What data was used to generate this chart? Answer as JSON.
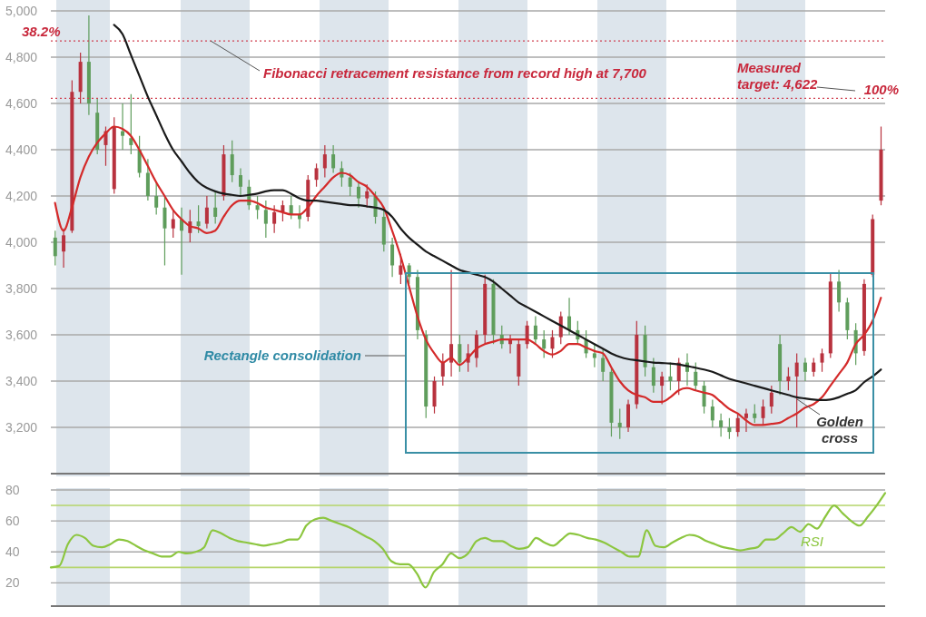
{
  "chart_data": [
    {
      "type": "candlestick",
      "categories": [
        null,
        null,
        null,
        null,
        null,
        null,
        null,
        null,
        null,
        null,
        null,
        null,
        null,
        null,
        null,
        null,
        null,
        null,
        null,
        null,
        null,
        null,
        null,
        null,
        null,
        null,
        null,
        null,
        null,
        null,
        null,
        null,
        null,
        null,
        null,
        null,
        null,
        null,
        null,
        null,
        null,
        null,
        null,
        null,
        null,
        null,
        null,
        null,
        null,
        null,
        null,
        null,
        null,
        null,
        null,
        null,
        null,
        null,
        null,
        null,
        null,
        null,
        null,
        null,
        null,
        null,
        null,
        null,
        null,
        null,
        null,
        null,
        null,
        null,
        null,
        null,
        null,
        null,
        null,
        null,
        null,
        null,
        null,
        null,
        null,
        null,
        null,
        null,
        null,
        null,
        null,
        null,
        null,
        null,
        null,
        null,
        null,
        null,
        null
      ],
      "ohlc": [
        [
          4020,
          4050,
          3900,
          3940
        ],
        [
          3960,
          4060,
          3890,
          4030
        ],
        [
          4050,
          4700,
          4040,
          4650
        ],
        [
          4650,
          4820,
          4600,
          4780
        ],
        [
          4780,
          4980,
          4550,
          4600
        ],
        [
          4560,
          4620,
          4380,
          4400
        ],
        [
          4420,
          4500,
          4330,
          4480
        ],
        [
          4230,
          4540,
          4210,
          4500
        ],
        [
          4480,
          4600,
          4400,
          4460
        ],
        [
          4450,
          4640,
          4380,
          4420
        ],
        [
          4400,
          4460,
          4280,
          4300
        ],
        [
          4300,
          4360,
          4180,
          4200
        ],
        [
          4200,
          4260,
          4120,
          4150
        ],
        [
          4150,
          4200,
          3900,
          4060
        ],
        [
          4060,
          4140,
          4020,
          4100
        ],
        [
          4100,
          4150,
          3860,
          4050
        ],
        [
          4040,
          4140,
          4000,
          4090
        ],
        [
          4090,
          4160,
          4040,
          4070
        ],
        [
          4080,
          4200,
          4060,
          4150
        ],
        [
          4150,
          4220,
          4080,
          4110
        ],
        [
          4200,
          4420,
          4180,
          4380
        ],
        [
          4380,
          4440,
          4260,
          4290
        ],
        [
          4290,
          4320,
          4200,
          4240
        ],
        [
          4240,
          4270,
          4140,
          4160
        ],
        [
          4160,
          4200,
          4100,
          4140
        ],
        [
          4140,
          4180,
          4020,
          4080
        ],
        [
          4080,
          4160,
          4040,
          4130
        ],
        [
          4130,
          4180,
          4090,
          4160
        ],
        [
          4160,
          4200,
          4100,
          4120
        ],
        [
          4120,
          4160,
          4060,
          4100
        ],
        [
          4110,
          4290,
          4090,
          4270
        ],
        [
          4270,
          4340,
          4240,
          4320
        ],
        [
          4320,
          4420,
          4280,
          4380
        ],
        [
          4380,
          4420,
          4300,
          4320
        ],
        [
          4320,
          4350,
          4240,
          4280
        ],
        [
          4280,
          4300,
          4200,
          4240
        ],
        [
          4240,
          4260,
          4150,
          4190
        ],
        [
          4190,
          4250,
          4150,
          4220
        ],
        [
          4200,
          4220,
          4080,
          4110
        ],
        [
          4110,
          4140,
          3960,
          3990
        ],
        [
          3990,
          4020,
          3850,
          3900
        ],
        [
          3860,
          3950,
          3820,
          3900
        ],
        [
          3900,
          3910,
          3820,
          3850
        ],
        [
          3850,
          3880,
          3580,
          3620
        ],
        [
          3600,
          3620,
          3240,
          3290
        ],
        [
          3290,
          3420,
          3260,
          3400
        ],
        [
          3420,
          3520,
          3380,
          3480
        ],
        [
          3480,
          3880,
          3420,
          3560
        ],
        [
          3560,
          3600,
          3440,
          3480
        ],
        [
          3480,
          3560,
          3440,
          3520
        ],
        [
          3500,
          3620,
          3460,
          3600
        ],
        [
          3600,
          3860,
          3560,
          3820
        ],
        [
          3820,
          3840,
          3560,
          3600
        ],
        [
          3600,
          3640,
          3540,
          3560
        ],
        [
          3560,
          3600,
          3520,
          3580
        ],
        [
          3420,
          3580,
          3380,
          3560
        ],
        [
          3560,
          3660,
          3540,
          3640
        ],
        [
          3640,
          3680,
          3560,
          3580
        ],
        [
          3580,
          3620,
          3500,
          3540
        ],
        [
          3540,
          3620,
          3500,
          3590
        ],
        [
          3590,
          3700,
          3560,
          3680
        ],
        [
          3680,
          3760,
          3600,
          3620
        ],
        [
          3620,
          3660,
          3560,
          3580
        ],
        [
          3580,
          3620,
          3500,
          3520
        ],
        [
          3520,
          3560,
          3460,
          3500
        ],
        [
          3500,
          3540,
          3400,
          3440
        ],
        [
          3440,
          3460,
          3160,
          3220
        ],
        [
          3220,
          3280,
          3150,
          3200
        ],
        [
          3200,
          3320,
          3180,
          3300
        ],
        [
          3300,
          3660,
          3280,
          3600
        ],
        [
          3600,
          3640,
          3420,
          3460
        ],
        [
          3460,
          3500,
          3350,
          3380
        ],
        [
          3380,
          3440,
          3300,
          3420
        ],
        [
          3420,
          3480,
          3360,
          3400
        ],
        [
          3400,
          3500,
          3340,
          3480
        ],
        [
          3480,
          3520,
          3380,
          3440
        ],
        [
          3440,
          3480,
          3360,
          3380
        ],
        [
          3380,
          3400,
          3260,
          3290
        ],
        [
          3290,
          3320,
          3200,
          3230
        ],
        [
          3230,
          3260,
          3160,
          3200
        ],
        [
          3200,
          3240,
          3150,
          3180
        ],
        [
          3180,
          3260,
          3160,
          3240
        ],
        [
          3240,
          3280,
          3180,
          3260
        ],
        [
          3260,
          3300,
          3220,
          3240
        ],
        [
          3240,
          3320,
          3210,
          3290
        ],
        [
          3290,
          3380,
          3260,
          3350
        ],
        [
          3560,
          3600,
          3340,
          3400
        ],
        [
          3400,
          3460,
          3360,
          3420
        ],
        [
          3420,
          3520,
          3200,
          3480
        ],
        [
          3480,
          3500,
          3400,
          3440
        ],
        [
          3440,
          3500,
          3420,
          3480
        ],
        [
          3480,
          3540,
          3440,
          3520
        ],
        [
          3520,
          3870,
          3500,
          3830
        ],
        [
          3830,
          3880,
          3700,
          3740
        ],
        [
          3740,
          3760,
          3580,
          3620
        ],
        [
          3620,
          3650,
          3470,
          3520
        ],
        [
          3530,
          3840,
          3510,
          3820
        ],
        [
          3860,
          4120,
          3850,
          4100
        ],
        [
          4180,
          4500,
          4160,
          4400
        ]
      ],
      "colors": [
        "#5f9d5c",
        "#b8323e",
        "#b8323e",
        "#b8323e",
        "#5f9d5c",
        "#5f9d5c",
        "#b8323e",
        "#b8323e",
        "#5f9d5c",
        "#5f9d5c",
        "#5f9d5c",
        "#5f9d5c",
        "#5f9d5c",
        "#5f9d5c",
        "#b8323e",
        "#5f9d5c",
        "#b8323e",
        "#5f9d5c",
        "#b8323e",
        "#5f9d5c",
        "#b8323e",
        "#5f9d5c",
        "#5f9d5c",
        "#5f9d5c",
        "#5f9d5c",
        "#5f9d5c",
        "#b8323e",
        "#b8323e",
        "#5f9d5c",
        "#5f9d5c",
        "#b8323e",
        "#b8323e",
        "#b8323e",
        "#5f9d5c",
        "#5f9d5c",
        "#5f9d5c",
        "#5f9d5c",
        "#b8323e",
        "#5f9d5c",
        "#5f9d5c",
        "#5f9d5c",
        "#b8323e",
        "#5f9d5c",
        "#5f9d5c",
        "#5f9d5c",
        "#b8323e",
        "#b8323e",
        "#b8323e",
        "#5f9d5c",
        "#b8323e",
        "#b8323e",
        "#b8323e",
        "#5f9d5c",
        "#5f9d5c",
        "#b8323e",
        "#b8323e",
        "#b8323e",
        "#5f9d5c",
        "#5f9d5c",
        "#b8323e",
        "#b8323e",
        "#5f9d5c",
        "#5f9d5c",
        "#5f9d5c",
        "#5f9d5c",
        "#5f9d5c",
        "#5f9d5c",
        "#5f9d5c",
        "#b8323e",
        "#b8323e",
        "#5f9d5c",
        "#5f9d5c",
        "#b8323e",
        "#5f9d5c",
        "#b8323e",
        "#5f9d5c",
        "#5f9d5c",
        "#5f9d5c",
        "#5f9d5c",
        "#5f9d5c",
        "#5f9d5c",
        "#b8323e",
        "#b8323e",
        "#5f9d5c",
        "#b8323e",
        "#b8323e",
        "#5f9d5c",
        "#b8323e",
        "#b8323e",
        "#5f9d5c",
        "#b8323e",
        "#b8323e",
        "#b8323e",
        "#5f9d5c",
        "#5f9d5c",
        "#5f9d5c",
        "#b8323e",
        "#b8323e",
        "#b8323e"
      ],
      "series": [
        {
          "type": "line",
          "color": "#d42a2a",
          "values": [
            4170,
            4050,
            4150,
            4280,
            4370,
            4430,
            4470,
            4500,
            4490,
            4460,
            4400,
            4330,
            4260,
            4200,
            4140,
            4100,
            4070,
            4060,
            4040,
            4050,
            4110,
            4160,
            4180,
            4180,
            4170,
            4150,
            4140,
            4130,
            4120,
            4120,
            4150,
            4200,
            4240,
            4280,
            4300,
            4290,
            4260,
            4240,
            4200,
            4150,
            4050,
            3940,
            3810,
            3680,
            3580,
            3520,
            3480,
            3500,
            3470,
            3500,
            3540,
            3560,
            3570,
            3580,
            3580,
            3580,
            3580,
            3560,
            3530,
            3515,
            3530,
            3560,
            3560,
            3545,
            3530,
            3520,
            3460,
            3400,
            3360,
            3340,
            3330,
            3310,
            3310,
            3330,
            3360,
            3370,
            3360,
            3350,
            3340,
            3310,
            3280,
            3260,
            3230,
            3210,
            3210,
            3215,
            3220,
            3240,
            3260,
            3285,
            3300,
            3330,
            3380,
            3430,
            3480,
            3560,
            3600,
            3660,
            3760
          ]
        },
        {
          "type": "line",
          "color": "#1a1a1a",
          "values": [
            null,
            null,
            null,
            null,
            null,
            null,
            null,
            4940,
            4900,
            4810,
            4720,
            4630,
            4550,
            4470,
            4400,
            4350,
            4300,
            4260,
            4235,
            4220,
            4210,
            4205,
            4200,
            4205,
            4210,
            4220,
            4225,
            4225,
            4210,
            4190,
            4180,
            4180,
            4175,
            4170,
            4165,
            4160,
            4160,
            4155,
            4150,
            4140,
            4110,
            4060,
            4020,
            3990,
            3960,
            3940,
            3920,
            3900,
            3880,
            3870,
            3860,
            3850,
            3830,
            3800,
            3770,
            3740,
            3720,
            3700,
            3680,
            3660,
            3640,
            3620,
            3600,
            3580,
            3560,
            3540,
            3520,
            3505,
            3495,
            3490,
            3485,
            3480,
            3478,
            3476,
            3472,
            3465,
            3458,
            3450,
            3440,
            3425,
            3410,
            3400,
            3390,
            3380,
            3370,
            3360,
            3350,
            3340,
            3330,
            3325,
            3320,
            3318,
            3320,
            3330,
            3345,
            3360,
            3395,
            3420,
            3450
          ]
        }
      ],
      "ylim": [
        3000,
        5000
      ],
      "yticks": [
        {
          "value": 3200,
          "label": "3,200"
        },
        {
          "value": 3400,
          "label": "3,400"
        },
        {
          "value": 3600,
          "label": "3,600"
        },
        {
          "value": 3800,
          "label": "3,800"
        },
        {
          "value": 4000,
          "label": "4,000"
        },
        {
          "value": 4200,
          "label": "4,200"
        },
        {
          "value": 4400,
          "label": "4,400"
        },
        {
          "value": 4600,
          "label": "4,600"
        },
        {
          "value": 4800,
          "label": "4,800"
        },
        {
          "value": 5000,
          "label": "5,000"
        }
      ],
      "grid": "y",
      "tick_labels": "y",
      "ref_lines": [
        {
          "axis": "y",
          "value": 4870,
          "color": "#d04050",
          "line_style": "dotted"
        },
        {
          "axis": "y",
          "value": 4622,
          "color": "#d04050",
          "line_style": "dotted"
        }
      ],
      "annotations": [
        "38.2%",
        "Fibonacci retracement resistance from record high at 7,700",
        "Measured target: 4,622",
        "100%",
        "Rectangle consolidation",
        "Golden cross"
      ]
    },
    {
      "type": "line",
      "categories": [
        null,
        null,
        null,
        null,
        null,
        null,
        null,
        null,
        null,
        null,
        null,
        null,
        null,
        null,
        null,
        null,
        null,
        null,
        null,
        null,
        null,
        null,
        null,
        null,
        null,
        null,
        null,
        null,
        null,
        null,
        null,
        null,
        null,
        null,
        null,
        null,
        null,
        null,
        null,
        null,
        null,
        null,
        null,
        null,
        null,
        null,
        null,
        null,
        null,
        null,
        null,
        null,
        null,
        null,
        null,
        null,
        null,
        null,
        null,
        null,
        null,
        null,
        null,
        null,
        null,
        null,
        null,
        null,
        null,
        null,
        null,
        null,
        null,
        null,
        null,
        null,
        null,
        null,
        null,
        null,
        null,
        null,
        null,
        null,
        null,
        null,
        null,
        null,
        null,
        null,
        null,
        null,
        null,
        null,
        null,
        null,
        null,
        null,
        null
      ],
      "series": [
        {
          "name": "RSI",
          "color": "#8cc63f",
          "values": [
            30,
            31,
            45,
            51,
            49,
            44,
            43,
            45,
            48,
            47,
            44,
            41,
            39,
            37,
            37,
            40,
            39,
            40,
            43,
            54,
            52,
            49,
            47,
            46,
            45,
            44,
            45,
            46,
            48,
            48,
            57,
            61,
            62,
            60,
            58,
            56,
            53,
            50,
            47,
            42,
            34,
            32,
            32,
            26,
            17,
            27,
            32,
            39,
            36,
            39,
            47,
            49,
            47,
            47,
            44,
            42,
            43,
            49,
            46,
            44,
            48,
            52,
            51,
            49,
            48,
            46,
            43,
            40,
            37,
            37,
            54,
            44,
            43,
            46,
            49,
            51,
            50,
            47,
            45,
            43,
            42,
            41,
            42,
            43,
            48,
            48,
            52,
            56,
            53,
            58,
            55,
            63,
            70,
            65,
            60,
            57,
            63,
            70,
            78
          ]
        }
      ],
      "ylim": [
        5,
        80
      ],
      "yticks": [
        20,
        40,
        60,
        80
      ],
      "grid": "y",
      "tick_labels": "y",
      "ref_lines": [
        {
          "axis": "y",
          "value": 70,
          "color": "#b5d56a",
          "line_style": "solid"
        },
        {
          "axis": "y",
          "value": 30,
          "color": "#b5d56a",
          "line_style": "solid"
        }
      ]
    }
  ]
}
